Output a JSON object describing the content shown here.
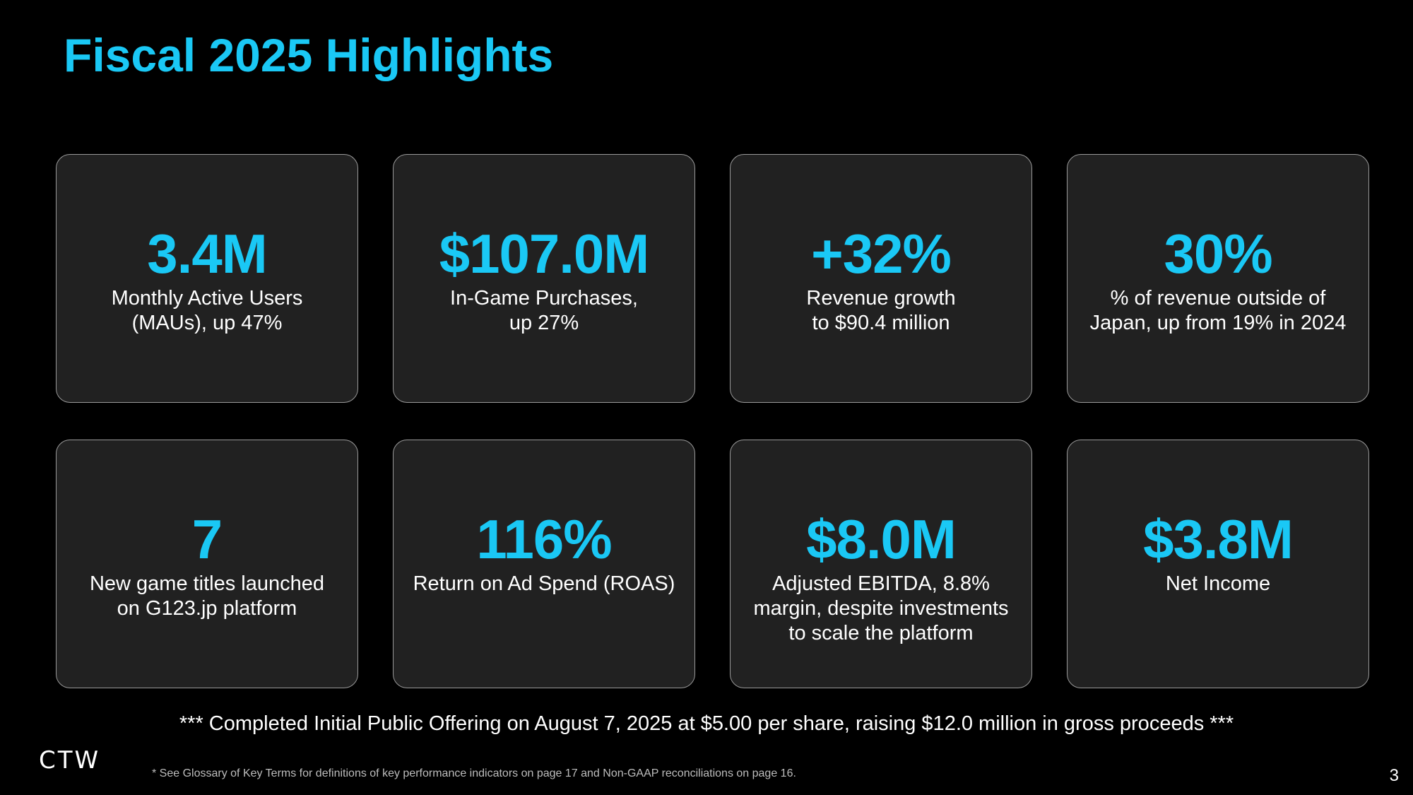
{
  "title": "Fiscal 2025 Highlights",
  "cards": [
    {
      "value": "3.4M",
      "description": "Monthly Active Users\n(MAUs), up 47%"
    },
    {
      "value": "$107.0M",
      "description": "In-Game Purchases,\nup 27%"
    },
    {
      "value": "+32%",
      "description": "Revenue growth\nto $90.4 million"
    },
    {
      "value": "30%",
      "description": "% of revenue outside of\nJapan, up from 19% in 2024"
    },
    {
      "value": "7",
      "description": "New game titles launched\non G123.jp platform"
    },
    {
      "value": "116%",
      "description": "Return on Ad Spend (ROAS)"
    },
    {
      "value": "$8.0M",
      "description": "Adjusted EBITDA, 8.8%\nmargin, despite investments\nto scale the platform"
    },
    {
      "value": "$3.8M",
      "description": "Net Income"
    }
  ],
  "ipo_note": "*** Completed Initial Public Offering on August 7, 2025 at $5.00 per share, raising $12.0 million in gross proceeds ***",
  "logo_text": "CTW",
  "footnote": "* See Glossary of Key Terms for definitions of key performance indicators on page 17 and Non-GAAP reconciliations on page 16.",
  "page_number": "3",
  "colors": {
    "accent": "#1ac8f5",
    "background": "#000000",
    "card_background": "#212121",
    "card_border": "#9a9a9a"
  }
}
